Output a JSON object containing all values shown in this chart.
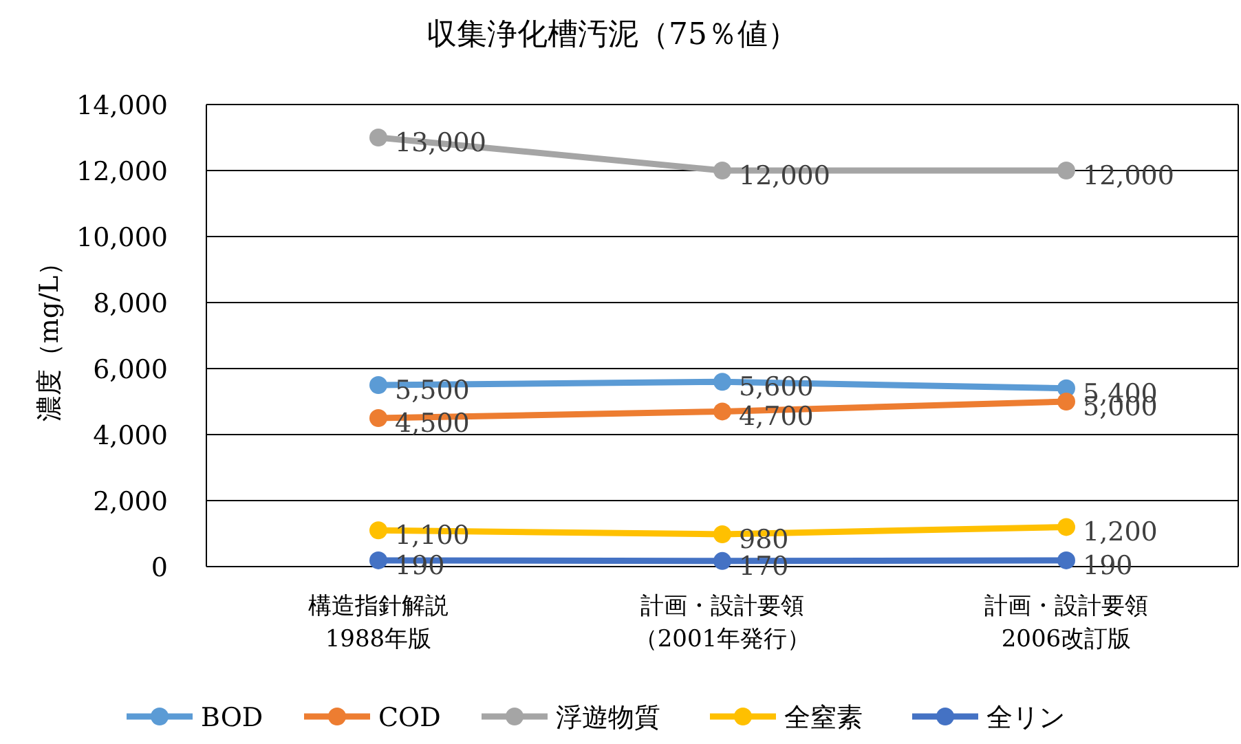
{
  "chart_data": {
    "type": "line",
    "title": "収集浄化槽汚泥（75％値）",
    "ylabel": "濃度（mg/L）",
    "categories": [
      "構造指針解説1988年版",
      "計画・設計要領（2001年発行）",
      "計画・設計要領2006改訂版"
    ],
    "series": [
      {
        "name": "BOD",
        "color": "#5b9bd5",
        "values": [
          5500,
          5600,
          5400
        ],
        "value_labels": [
          "5,500",
          "5,600",
          "5,400"
        ]
      },
      {
        "name": "COD",
        "color": "#ed7d31",
        "values": [
          4500,
          4700,
          5000
        ],
        "value_labels": [
          "4,500",
          "4,700",
          "5,000"
        ]
      },
      {
        "name": "浮遊物質",
        "color": "#a5a5a5",
        "values": [
          13000,
          12000,
          12000
        ],
        "value_labels": [
          "13,000",
          "12,000",
          "12,000"
        ]
      },
      {
        "name": "全窒素",
        "color": "#ffc000",
        "values": [
          1100,
          980,
          1200
        ],
        "value_labels": [
          "1,100",
          "980",
          "1,200"
        ]
      },
      {
        "name": "全リン",
        "color": "#4472c4",
        "values": [
          190,
          170,
          190
        ],
        "value_labels": [
          "190",
          "170",
          "190"
        ]
      }
    ],
    "ylim": [
      0,
      14000
    ],
    "yticks": [
      0,
      {
        "value": 2000,
        "label": "2,000"
      },
      {
        "value": 4000,
        "label": "4,000"
      },
      {
        "value": 6000,
        "label": "6,000"
      },
      {
        "value": 8000,
        "label": "8,000"
      },
      {
        "value": 10000,
        "label": "10,000"
      },
      {
        "value": 12000,
        "label": "12,000"
      },
      {
        "value": 14000,
        "label": "14,000"
      }
    ],
    "grid": "y",
    "legend": "bottom",
    "marker": "circle",
    "line_style": "solid"
  }
}
